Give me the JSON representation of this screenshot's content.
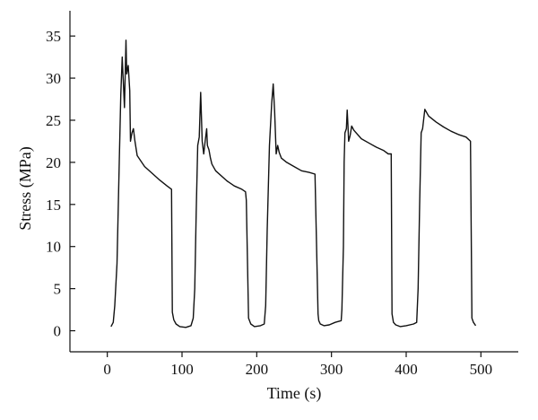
{
  "chart_data": {
    "type": "line",
    "title": "",
    "xlabel": "Time (s)",
    "ylabel": "Stress (MPa)",
    "xlim": [
      -50,
      550
    ],
    "ylim": [
      -2.5,
      38
    ],
    "xticks": [
      0,
      100,
      200,
      300,
      400,
      500
    ],
    "yticks": [
      0,
      5,
      10,
      15,
      20,
      25,
      30,
      35
    ],
    "grid": false,
    "legend": "none",
    "colors": {
      "line": "#111111",
      "axis": "#111111",
      "background": "#ffffff"
    },
    "series": [
      {
        "x": [
          5,
          8,
          10,
          13,
          16,
          18,
          20,
          23,
          25,
          26,
          28,
          30,
          31,
          33,
          35,
          37,
          40,
          50,
          60,
          70,
          80,
          86,
          87,
          89,
          92,
          97,
          105,
          112,
          115,
          117,
          119,
          121,
          123,
          125,
          127,
          129,
          131,
          133,
          134,
          136,
          138,
          140,
          145,
          160,
          170,
          180,
          185,
          186,
          189,
          192,
          197,
          205,
          210,
          212,
          214,
          217,
          220,
          222,
          224,
          226,
          228,
          230,
          233,
          240,
          250,
          260,
          270,
          278,
          282,
          283,
          285,
          290,
          297,
          305,
          313,
          314,
          316,
          317,
          318,
          320,
          321,
          322,
          323,
          325,
          327,
          330,
          340,
          350,
          360,
          370,
          376,
          380,
          381,
          383,
          386,
          392,
          400,
          410,
          414,
          416,
          418,
          420,
          422,
          425,
          430,
          440,
          450,
          460,
          470,
          480,
          485,
          486,
          488,
          490,
          493
        ],
        "values": [
          0.5,
          1.0,
          3.0,
          8.0,
          20.0,
          28.0,
          32.5,
          26.5,
          34.5,
          30.5,
          31.5,
          28.5,
          22.5,
          23.5,
          24.0,
          22.5,
          20.8,
          19.5,
          18.7,
          17.9,
          17.2,
          16.8,
          2.2,
          1.3,
          0.8,
          0.5,
          0.4,
          0.6,
          1.5,
          5.0,
          14.0,
          22.0,
          23.0,
          28.3,
          22.5,
          21.0,
          22.5,
          24.0,
          22.0,
          21.5,
          20.5,
          19.8,
          19.0,
          17.8,
          17.2,
          16.8,
          16.5,
          15.5,
          1.5,
          0.8,
          0.5,
          0.6,
          0.8,
          3.0,
          12.0,
          22.0,
          27.0,
          29.3,
          26.0,
          21.0,
          22.0,
          21.2,
          20.5,
          20.0,
          19.5,
          19.0,
          18.8,
          18.6,
          2.0,
          1.2,
          0.8,
          0.6,
          0.7,
          1.0,
          1.2,
          2.5,
          10.0,
          20.0,
          23.5,
          24.0,
          26.2,
          24.5,
          22.5,
          23.2,
          24.3,
          23.8,
          22.8,
          22.3,
          21.8,
          21.4,
          21.0,
          21.0,
          2.0,
          1.0,
          0.7,
          0.5,
          0.6,
          0.8,
          1.0,
          5.0,
          15.0,
          23.5,
          24.0,
          26.3,
          25.5,
          24.8,
          24.2,
          23.7,
          23.3,
          23.0,
          22.6,
          22.5,
          1.5,
          1.0,
          0.6
        ]
      }
    ]
  }
}
